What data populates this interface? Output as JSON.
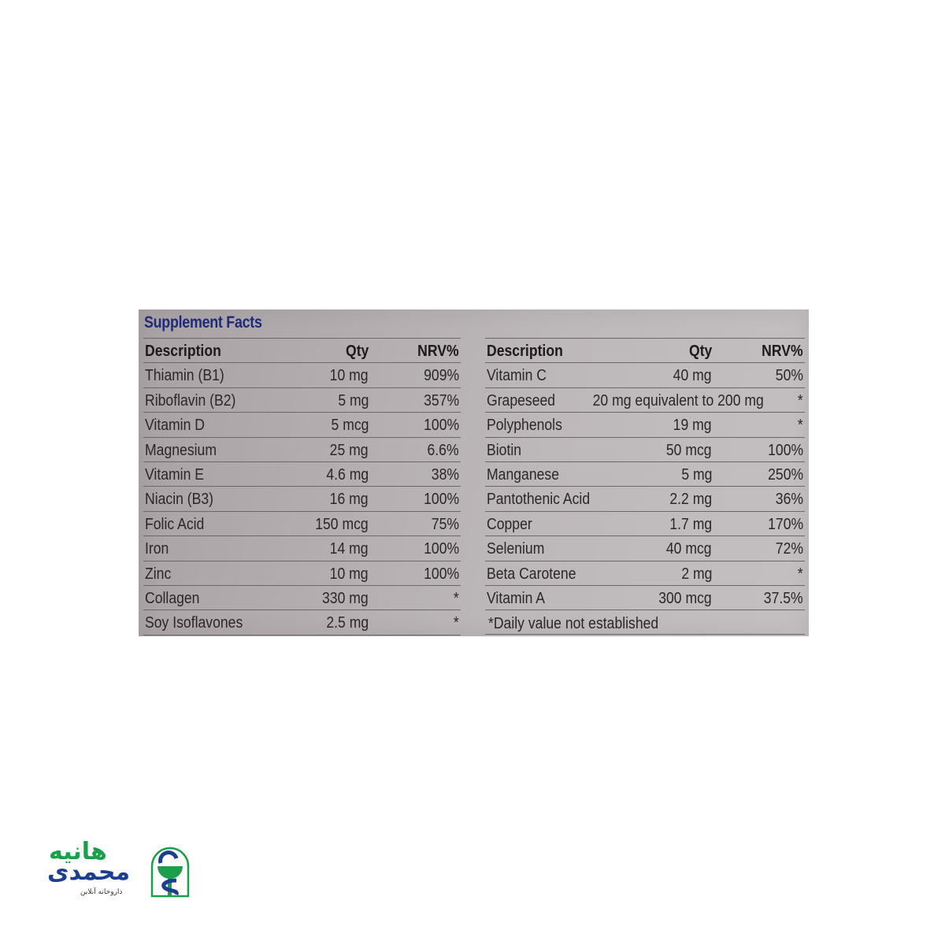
{
  "title": "Supplement Facts",
  "columns": {
    "description": "Description",
    "qty": "Qty",
    "nrv": "NRV%"
  },
  "left_rows": [
    {
      "description": "Thiamin (B1)",
      "qty": "10 mg",
      "nrv": "909%"
    },
    {
      "description": "Riboflavin (B2)",
      "qty": "5 mg",
      "nrv": "357%"
    },
    {
      "description": "Vitamin D",
      "qty": "5 mcg",
      "nrv": "100%"
    },
    {
      "description": "Magnesium",
      "qty": "25 mg",
      "nrv": "6.6%"
    },
    {
      "description": "Vitamin E",
      "qty": "4.6 mg",
      "nrv": "38%"
    },
    {
      "description": "Niacin (B3)",
      "qty": "16 mg",
      "nrv": "100%"
    },
    {
      "description": "Folic Acid",
      "qty": "150 mcg",
      "nrv": "75%"
    },
    {
      "description": "Iron",
      "qty": "14 mg",
      "nrv": "100%"
    },
    {
      "description": "Zinc",
      "qty": "10 mg",
      "nrv": "100%"
    },
    {
      "description": "Collagen",
      "qty": "330 mg",
      "nrv": "*"
    },
    {
      "description": "Soy Isoflavones",
      "qty": "2.5 mg",
      "nrv": "*"
    }
  ],
  "right_rows": [
    {
      "description": "Vitamin C",
      "qty": "40 mg",
      "nrv": "50%"
    },
    {
      "description": "Grapeseed",
      "qty": "20 mg equivalent to 200 mg",
      "nrv": "*"
    },
    {
      "description": "Polyphenols",
      "qty": "19 mg",
      "nrv": "*"
    },
    {
      "description": "Biotin",
      "qty": "50 mcg",
      "nrv": "100%"
    },
    {
      "description": "Manganese",
      "qty": "5 mg",
      "nrv": "250%"
    },
    {
      "description": "Pantothenic  Acid",
      "qty": "2.2 mg",
      "nrv": "36%"
    },
    {
      "description": "Copper",
      "qty": "1.7 mg",
      "nrv": "170%"
    },
    {
      "description": "Selenium",
      "qty": "40 mcg",
      "nrv": "72%"
    },
    {
      "description": "Beta Carotene",
      "qty": "2 mg",
      "nrv": "*"
    },
    {
      "description": "Vitamin A",
      "qty": "300 mcg",
      "nrv": "37.5%"
    }
  ],
  "footnote": "*Daily value not established",
  "logo": {
    "name_line1": "هانیه",
    "name_line2": "محمدی",
    "tagline": "داروخانه آنلاین",
    "green": "#1aa04a",
    "blue": "#1b3f8e"
  },
  "colors": {
    "title": "#1f2a78",
    "panel": "#b3adb0"
  }
}
